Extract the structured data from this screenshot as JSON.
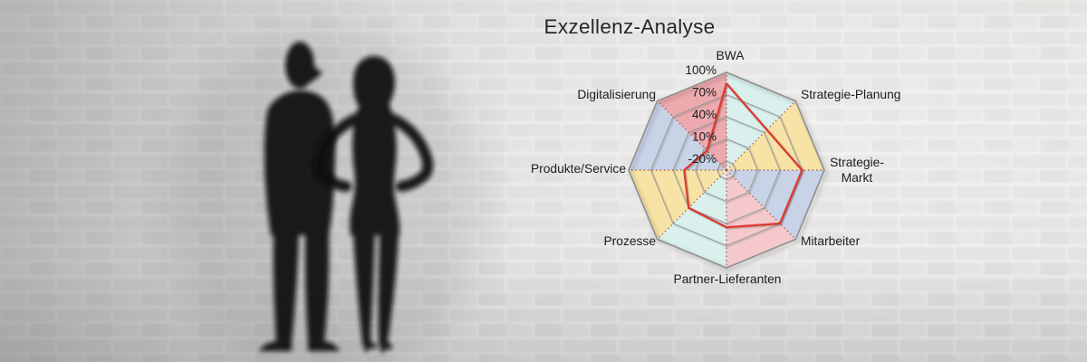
{
  "chart_data": {
    "type": "radar",
    "title": "Exzellenz-Analyse",
    "categories": [
      "BWA",
      "Strategie-Planung",
      "Strategie-Markt",
      "Mitarbeiter",
      "Partner-Lieferanten",
      "Prozesse",
      "Produkte/Service",
      "Digitalisierung"
    ],
    "values": [
      85,
      45,
      70,
      70,
      45,
      40,
      25,
      5
    ],
    "value_suffix": "%",
    "axis_tick_labels": [
      "100%",
      "70%",
      "40%",
      "10%",
      "-20%"
    ],
    "axis_tick_values": [
      100,
      70,
      40,
      10,
      -20
    ],
    "axis_range": [
      -20,
      100
    ],
    "grid": true,
    "legend_position": "none",
    "colors": {
      "series_line": "#dc3a30",
      "sector_fills": [
        "#d9f0ed",
        "#f8e3a6",
        "#c9d3e7",
        "#f5c9cc",
        "#d9f0ed",
        "#f8e3a6",
        "#c9d3e7",
        "#ecaaae"
      ],
      "grid_line": "#9b9b9b",
      "outer_border": "#8e8e8e",
      "axis_spoke": "#a05a55",
      "label_text": "#1c1c1c"
    }
  }
}
